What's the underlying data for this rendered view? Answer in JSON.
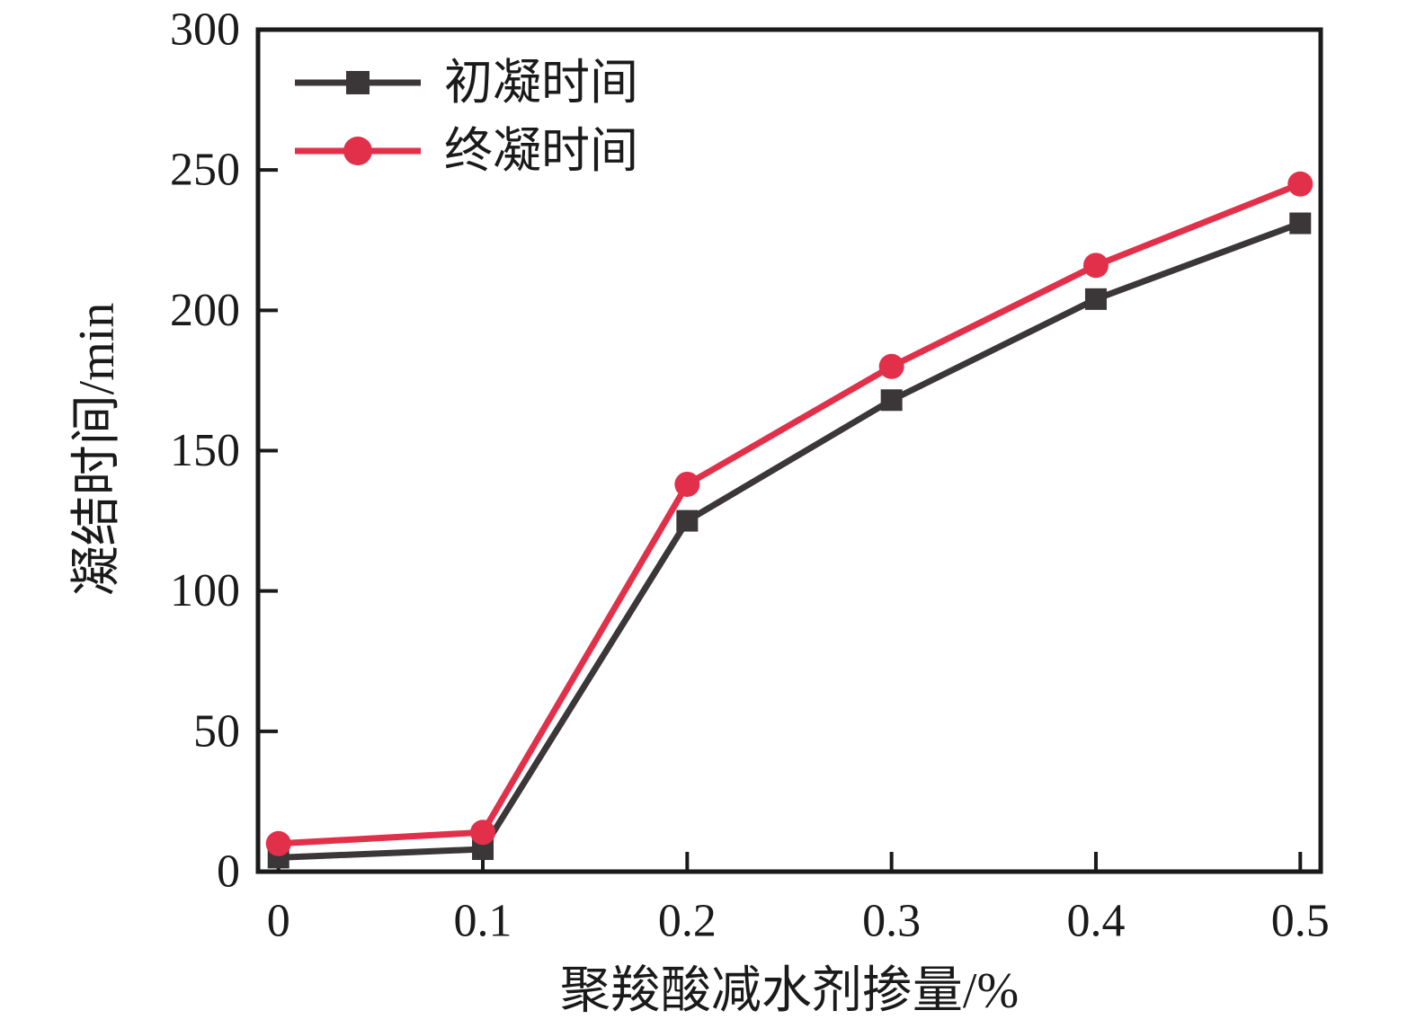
{
  "chart_data": {
    "type": "line",
    "title": "",
    "xlabel": "聚羧酸减水剂掺量/%",
    "ylabel": "凝结时间/min",
    "x": [
      0,
      0.1,
      0.2,
      0.3,
      0.4,
      0.5
    ],
    "xticks": [
      0,
      0.1,
      0.2,
      0.3,
      0.4,
      0.5
    ],
    "xtick_labels": [
      "0",
      "0.1",
      "0.2",
      "0.3",
      "0.4",
      "0.5"
    ],
    "yticks": [
      0,
      50,
      100,
      150,
      200,
      250,
      300
    ],
    "ytick_labels": [
      "0",
      "50",
      "100",
      "150",
      "200",
      "250",
      "300"
    ],
    "xlim": [
      -0.01,
      0.51
    ],
    "ylim": [
      0,
      300
    ],
    "grid": false,
    "legend_position": "top-left",
    "axis_color": "#1a1a1a",
    "text_color": "#1a1a1a",
    "background": "#ffffff",
    "series": [
      {
        "id": "initial-setting-time",
        "name": "初凝时间",
        "marker": "square",
        "color": "#3b3738",
        "values": [
          5,
          8,
          125,
          168,
          204,
          231
        ]
      },
      {
        "id": "final-setting-time",
        "name": "终凝时间",
        "marker": "circle",
        "color": "#e2304a",
        "values": [
          10,
          14,
          138,
          180,
          216,
          245
        ]
      }
    ]
  }
}
